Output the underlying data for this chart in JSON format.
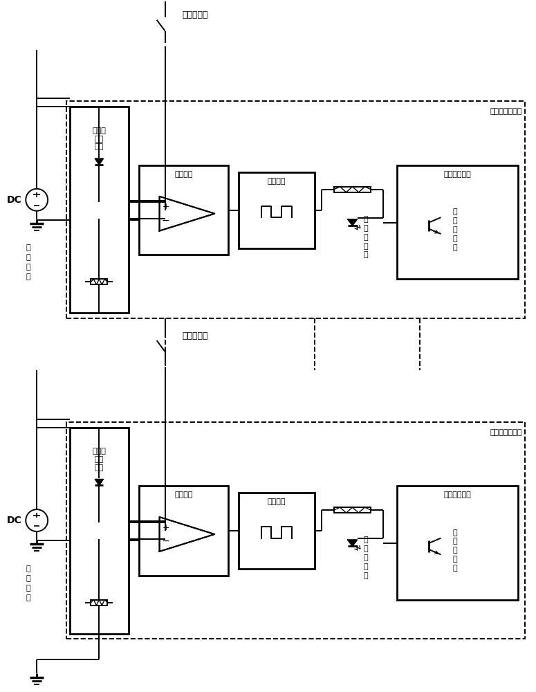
{
  "bg_color": "#ffffff",
  "lc": "#000000",
  "lw": 1.4,
  "lw2": 2.0,
  "block1_label": "信号调制",
  "block2_label": "伏频转换",
  "block3_label": "接收解调模块",
  "feature_label": "特征值\n电压\n编制",
  "switch_label": "开关量信号",
  "multi_label": "多功能编址装置",
  "ref_label_1": "参",
  "ref_label_2": "考",
  "ref_label_3": "电",
  "ref_label_4": "源",
  "ir_emit_label_1": "红",
  "ir_emit_label_2": "外",
  "ir_emit_label_3": "发",
  "ir_emit_label_4": "射",
  "ir_emit_label_5": "管",
  "ir_recv_label_1": "红",
  "ir_recv_label_2": "外",
  "ir_recv_label_3": "接",
  "ir_recv_label_4": "收",
  "ir_recv_label_5": "管",
  "dc_label": "DC",
  "fs": 9,
  "fs_small": 8
}
